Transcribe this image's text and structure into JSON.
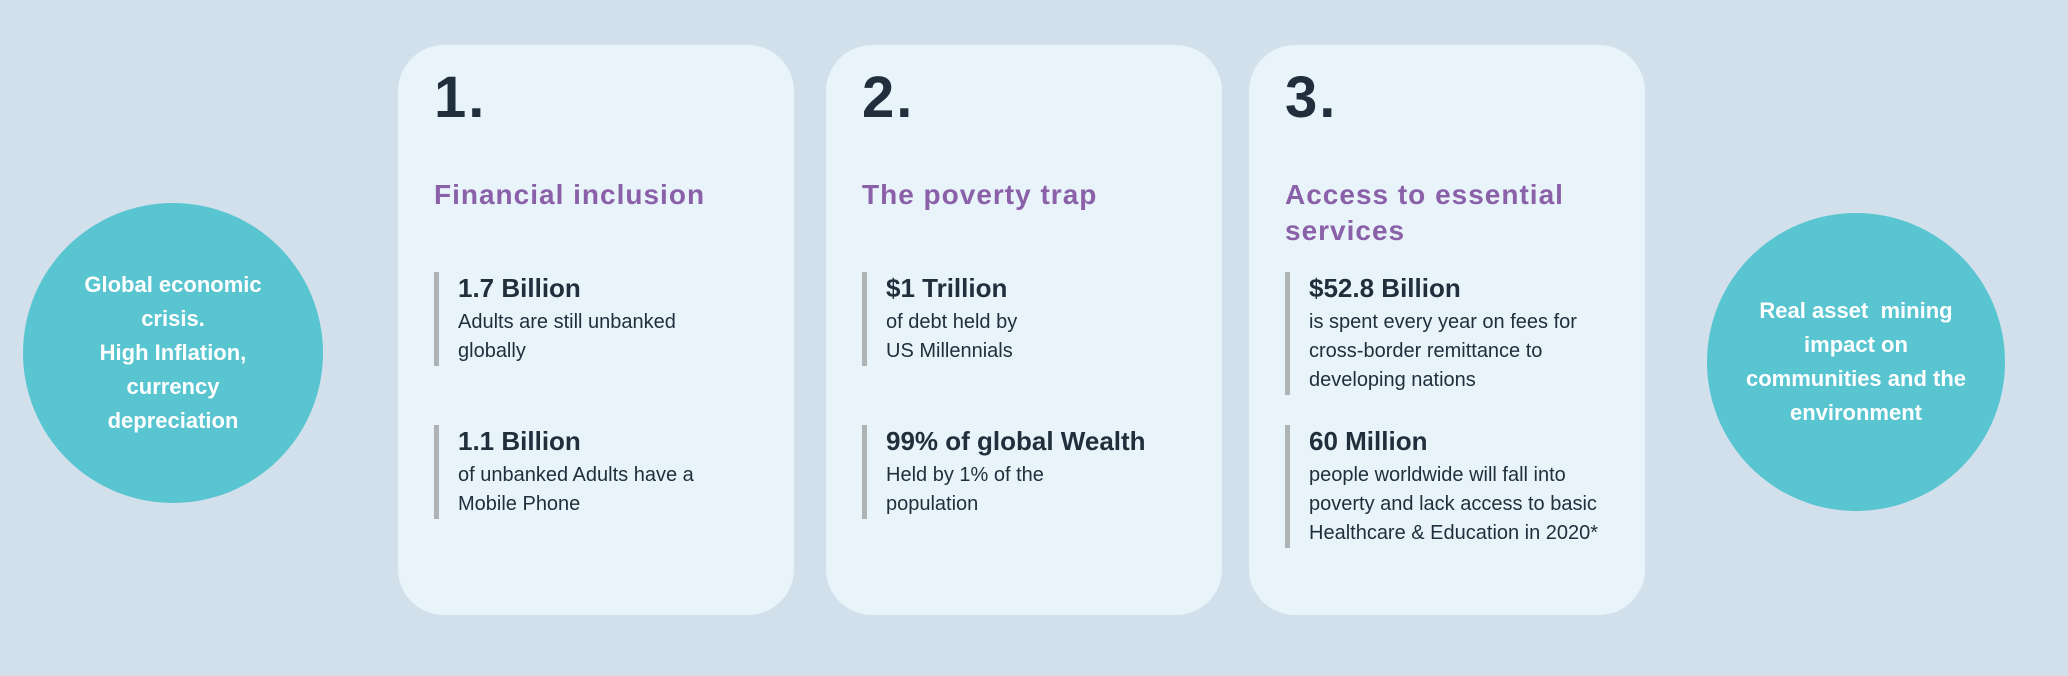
{
  "colors": {
    "background": "#d2e0ec",
    "card_background": "#e9f3fa",
    "bubble_teal": "#58c5d1",
    "heading_purple": "#8a61a8",
    "text_dark": "#212f3d",
    "stat_bar_grey": "#aeb3b6",
    "bubble_text_white": "#ffffff"
  },
  "left_bubble": {
    "text": "Global economic\ncrisis.\nHigh Inflation,\ncurrency\ndepreciation"
  },
  "right_bubble": {
    "text": "Real asset  mining\nimpact on\ncommunities and the\nenvironment"
  },
  "cards": [
    {
      "number": "1.",
      "title": "Financial inclusion",
      "stats": [
        {
          "value": "1.7 Billion",
          "desc": "Adults are still unbanked\nglobally"
        },
        {
          "value": "1.1 Billion",
          "desc": "of unbanked Adults have a\nMobile Phone"
        }
      ]
    },
    {
      "number": "2.",
      "title": "The poverty trap",
      "stats": [
        {
          "value": "$1 Trillion",
          "desc": "of debt held by\nUS Millennials"
        },
        {
          "value": "99% of global Wealth",
          "desc": "Held by 1% of the\npopulation"
        }
      ]
    },
    {
      "number": "3.",
      "title": "Access to essential\nservices",
      "stats": [
        {
          "value": "$52.8 Billion",
          "desc": "is spent every year on fees for\ncross-border remittance to\ndeveloping nations"
        },
        {
          "value": "60 Million",
          "desc": "people worldwide will fall into\npoverty and lack access to basic\nHealthcare & Education in 2020*"
        }
      ]
    }
  ]
}
